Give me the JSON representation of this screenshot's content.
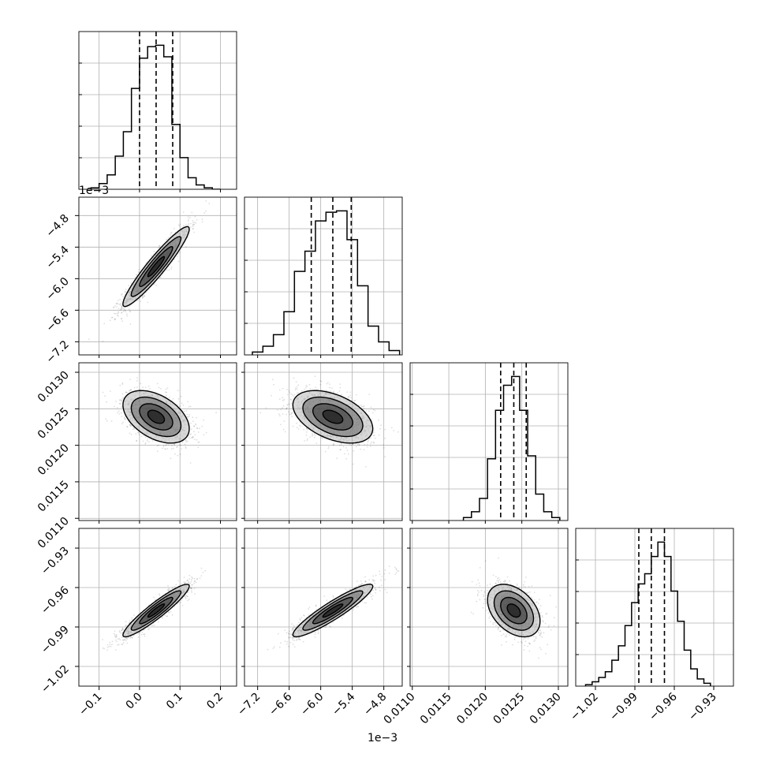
{
  "chart_data": {
    "type": "corner",
    "parameters": [
      {
        "range": [
          -0.15,
          0.24
        ],
        "ticks": [
          -0.1,
          0.0,
          0.1,
          0.2
        ],
        "tick_labels": [
          "−0.1",
          "0.0",
          "0.1",
          "0.2"
        ],
        "offset_text": "1e−3",
        "quantiles": [
          0.0,
          0.041,
          0.082
        ],
        "histogram": {
          "edges": [
            -0.12,
            -0.1,
            -0.08,
            -0.06,
            -0.04,
            -0.02,
            0.0,
            0.02,
            0.04,
            0.06,
            0.08,
            0.1,
            0.12,
            0.14,
            0.16,
            0.18,
            0.2
          ],
          "counts": [
            1,
            4,
            10,
            23,
            40,
            70,
            91,
            99,
            100,
            92,
            45,
            22,
            8,
            3,
            1,
            0
          ]
        }
      },
      {
        "range": [
          -7.45,
          -4.45
        ],
        "ticks": [
          -7.2,
          -6.6,
          -6.0,
          -5.4,
          -4.8
        ],
        "tick_labels": [
          "−7.2",
          "−6.6",
          "−6.0",
          "−5.4",
          "−4.8"
        ],
        "offset_text": "1e−3",
        "quantiles": [
          -6.18,
          -5.77,
          -5.42
        ],
        "histogram": {
          "edges": [
            -7.3,
            -7.1,
            -6.9,
            -6.7,
            -6.5,
            -6.3,
            -6.1,
            -5.9,
            -5.7,
            -5.5,
            -5.3,
            -5.1,
            -4.9,
            -4.7,
            -4.5
          ],
          "counts": [
            2,
            6,
            14,
            30,
            58,
            72,
            93,
            99,
            100,
            80,
            48,
            20,
            9,
            3
          ]
        }
      },
      {
        "range": [
          0.01097,
          0.01313
        ],
        "ticks": [
          0.011,
          0.0115,
          0.012,
          0.0125,
          0.013
        ],
        "tick_labels": [
          "0.0110",
          "0.0115",
          "0.0120",
          "0.0125",
          "0.0130"
        ],
        "offset_text": "",
        "quantiles": [
          0.01221,
          0.01239,
          0.01256
        ],
        "histogram": {
          "edges": [
            0.0117,
            0.01181,
            0.01192,
            0.01203,
            0.01214,
            0.01225,
            0.01236,
            0.01247,
            0.01258,
            0.01269,
            0.0128,
            0.01291,
            0.01302
          ],
          "counts": [
            2,
            6,
            15,
            42,
            75,
            92,
            98,
            75,
            44,
            18,
            6,
            2
          ]
        }
      },
      {
        "range": [
          -1.035,
          -0.915
        ],
        "ticks": [
          -1.02,
          -0.99,
          -0.96,
          -0.93
        ],
        "tick_labels": [
          "−1.02",
          "−0.99",
          "−0.96",
          "−0.93"
        ],
        "offset_text": "",
        "quantiles": [
          -0.987,
          -0.9775,
          -0.9675
        ],
        "histogram": {
          "edges": [
            -1.0275,
            -1.0225,
            -1.0175,
            -1.0125,
            -1.0075,
            -1.0025,
            -0.9975,
            -0.9925,
            -0.9875,
            -0.9825,
            -0.9775,
            -0.9725,
            -0.9675,
            -0.9625,
            -0.9575,
            -0.9525,
            -0.9475,
            -0.9425,
            -0.9375,
            -0.9325
          ],
          "counts": [
            1,
            3,
            6,
            10,
            18,
            28,
            42,
            58,
            71,
            78,
            90,
            100,
            90,
            66,
            45,
            25,
            12,
            5,
            2
          ]
        }
      }
    ],
    "pairs": [
      {
        "row": 1,
        "col": 0,
        "mean": [
          0.041,
          -5.77
        ],
        "sd": [
          0.041,
          0.38
        ],
        "rho": 0.94
      },
      {
        "row": 2,
        "col": 0,
        "mean": [
          0.041,
          0.01239
        ],
        "sd": [
          0.041,
          0.00018
        ],
        "rho": -0.45
      },
      {
        "row": 2,
        "col": 1,
        "mean": [
          -5.77,
          0.01239
        ],
        "sd": [
          0.38,
          0.00018
        ],
        "rho": -0.45
      },
      {
        "row": 3,
        "col": 0,
        "mean": [
          0.041,
          -0.9775
        ],
        "sd": [
          0.041,
          0.01
        ],
        "rho": 0.93
      },
      {
        "row": 3,
        "col": 1,
        "mean": [
          -5.77,
          -0.9775
        ],
        "sd": [
          0.38,
          0.01
        ],
        "rho": 0.92
      },
      {
        "row": 3,
        "col": 2,
        "mean": [
          0.01239,
          -0.9775
        ],
        "sd": [
          0.00018,
          0.01
        ],
        "rho": -0.4
      }
    ],
    "grid": true,
    "contour_sigma_levels": [
      0.5,
      1.0,
      1.5,
      2.0
    ]
  },
  "colors": {
    "line": "#000000",
    "grid": "#b0b0b0",
    "points": "#000000"
  }
}
